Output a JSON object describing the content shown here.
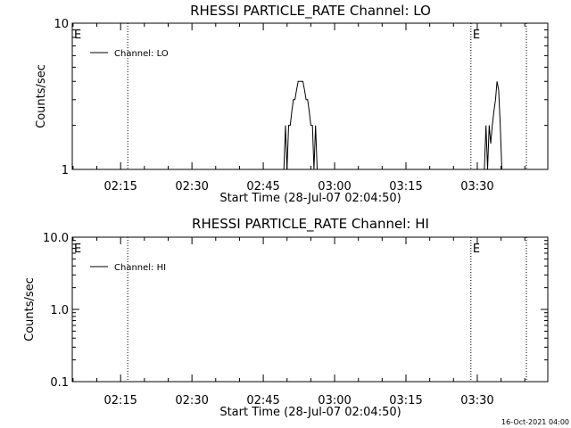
{
  "chart_data": [
    {
      "type": "line",
      "title": "RHESSI PARTICLE_RATE Channel: LO",
      "xlabel": "Start Time (28-Jul-07 02:04:50)",
      "ylabel": "Counts/sec",
      "y_scale": "log",
      "ylim": [
        1,
        10
      ],
      "xlim": [
        "02:04:50",
        "03:44:50"
      ],
      "x_ticks": [
        "02:15",
        "02:30",
        "02:45",
        "03:00",
        "03:15",
        "03:30"
      ],
      "y_ticks": [
        "1",
        "10"
      ],
      "grid": false,
      "legend_position": "top-left",
      "event_markers": [
        {
          "time": "02:05",
          "label": "E",
          "line": false
        },
        {
          "time": "02:16:30",
          "label": "",
          "line": true
        },
        {
          "time": "03:28:40",
          "label": "E",
          "line": true
        },
        {
          "time": "03:40:20",
          "label": "",
          "line": true
        }
      ],
      "series": [
        {
          "name": "Channel: LO",
          "x": [
            "02:49:20",
            "02:49:40",
            "02:50:00",
            "02:50:20",
            "02:50:40",
            "02:51:00",
            "02:51:20",
            "02:51:40",
            "02:52:00",
            "02:52:20",
            "02:52:40",
            "02:53:00",
            "02:53:20",
            "02:53:40",
            "02:54:00",
            "02:54:20",
            "02:54:40",
            "02:55:00",
            "02:55:20",
            "02:55:40",
            "02:56:00",
            "02:56:20",
            "02:56:40",
            "03:31:30",
            "03:31:50",
            "03:32:10",
            "03:32:30",
            "03:32:50",
            "03:33:10",
            "03:33:30",
            "03:33:50",
            "03:34:10",
            "03:34:30",
            "03:34:50",
            "03:35:10",
            "03:35:30",
            "03:35:50"
          ],
          "values": [
            1,
            2,
            1,
            2,
            2,
            2.5,
            3,
            3,
            3.5,
            4,
            4,
            4,
            4,
            3.5,
            3,
            3,
            2.5,
            2,
            2,
            1,
            2,
            1,
            1,
            1,
            2,
            1,
            2,
            1.5,
            2,
            2.5,
            3,
            4,
            3.5,
            2,
            1,
            1,
            1
          ]
        }
      ]
    },
    {
      "type": "line",
      "title": "RHESSI PARTICLE_RATE Channel: HI",
      "xlabel": "Start Time (28-Jul-07 02:04:50)",
      "ylabel": "Counts/sec",
      "y_scale": "log",
      "ylim": [
        0.1,
        10
      ],
      "xlim": [
        "02:04:50",
        "03:44:50"
      ],
      "x_ticks": [
        "02:15",
        "02:30",
        "02:45",
        "03:00",
        "03:15",
        "03:30"
      ],
      "y_ticks": [
        "0.1",
        "1.0",
        "10.0"
      ],
      "grid": false,
      "legend_position": "top-left",
      "event_markers": [
        {
          "time": "02:05",
          "label": "E",
          "line": false
        },
        {
          "time": "02:16:30",
          "label": "",
          "line": true
        },
        {
          "time": "03:28:40",
          "label": "E",
          "line": true
        },
        {
          "time": "03:40:20",
          "label": "",
          "line": true
        }
      ],
      "series": [
        {
          "name": "Channel: HI",
          "x": [],
          "values": []
        }
      ]
    }
  ],
  "footer": {
    "timestamp": "16-Oct-2021 04:00"
  }
}
